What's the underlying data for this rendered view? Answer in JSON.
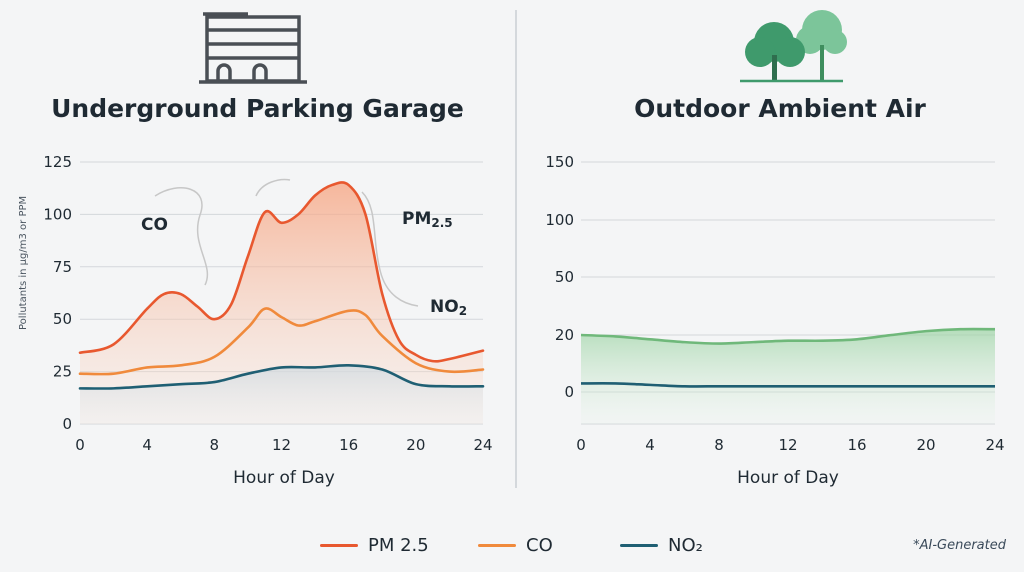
{
  "colors": {
    "pm25": "#e8582f",
    "co": "#f08a3c",
    "no2": "#1f5f73",
    "outdoor_upper": "#6fb87a",
    "outdoor_lower": "#1f5f73",
    "divider": "#c9ced3"
  },
  "icons": {
    "left": "parking-garage-building-icon",
    "right": "trees-icon"
  },
  "legend": [
    {
      "label": "PM 2.5",
      "color": "#e8582f"
    },
    {
      "label": "CO",
      "color": "#f08a3c"
    },
    {
      "label": "NO₂",
      "color": "#1f5f73"
    }
  ],
  "footnote": "*AI-Generated",
  "chart_data": [
    {
      "type": "line",
      "title": "Underground Parking Garage",
      "xlabel": "Hour of Day",
      "ylabel": "Pollutants in μg/m3 or PPM",
      "x_ticks": [
        0,
        4,
        8,
        12,
        16,
        20,
        24
      ],
      "y_ticks": [
        0,
        25,
        50,
        75,
        100,
        125
      ],
      "xlim": [
        0,
        24
      ],
      "ylim": [
        0,
        125
      ],
      "grid": true,
      "annotations": [
        "CO",
        "PM2.5",
        "NO2"
      ],
      "series": [
        {
          "name": "PM 2.5",
          "x": [
            0,
            2,
            4,
            5,
            6,
            7,
            8,
            9,
            10,
            11,
            12,
            13,
            14,
            15,
            16,
            17,
            18,
            19,
            20,
            21,
            22,
            24
          ],
          "y": [
            34,
            38,
            55,
            62,
            62,
            56,
            50,
            57,
            80,
            101,
            96,
            100,
            109,
            114,
            114,
            100,
            62,
            40,
            33,
            30,
            31,
            35
          ]
        },
        {
          "name": "CO",
          "x": [
            0,
            2,
            4,
            6,
            8,
            10,
            11,
            12,
            13,
            14,
            16,
            17,
            18,
            20,
            22,
            24
          ],
          "y": [
            24,
            24,
            27,
            28,
            32,
            46,
            55,
            51,
            47,
            49,
            54,
            52,
            42,
            29,
            25,
            26
          ],
          "note": "y values read in chart order after PM2.5"
        },
        {
          "name": "NO₂",
          "x": [
            0,
            2,
            4,
            6,
            8,
            10,
            12,
            14,
            16,
            18,
            20,
            22,
            24
          ],
          "y": [
            17,
            17,
            18,
            19,
            20,
            24,
            27,
            27,
            28,
            26,
            19,
            18,
            18
          ]
        }
      ]
    },
    {
      "type": "area",
      "title": "Outdoor Ambient Air",
      "xlabel": "Hour of Day",
      "x_ticks": [
        0,
        4,
        8,
        12,
        16,
        20,
        24
      ],
      "y_ticks": [
        0,
        20,
        50,
        100,
        150
      ],
      "xlim": [
        0,
        24
      ],
      "grid": true,
      "series": [
        {
          "x": [
            0,
            2,
            4,
            6,
            8,
            10,
            12,
            14,
            16,
            18,
            20,
            22,
            24
          ],
          "y": [
            20,
            19.5,
            18.5,
            17.5,
            17,
            17.5,
            18,
            18,
            18.5,
            20,
            22,
            23,
            23
          ]
        },
        {
          "x": [
            0,
            2,
            4,
            6,
            8,
            10,
            12,
            14,
            16,
            18,
            20,
            22,
            24
          ],
          "y": [
            3,
            3,
            2.5,
            2,
            2,
            2,
            2,
            2,
            2,
            2,
            2,
            2,
            2
          ]
        }
      ]
    }
  ]
}
